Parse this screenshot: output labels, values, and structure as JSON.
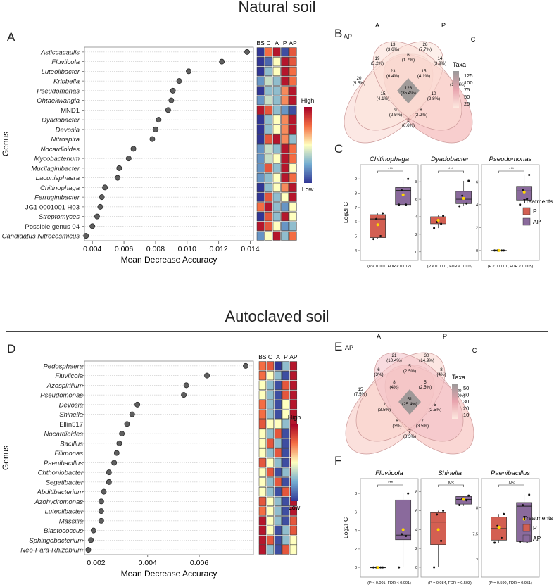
{
  "sections": [
    {
      "title": "Natural soil"
    },
    {
      "title": "Autoclaved soil"
    }
  ],
  "panels": {
    "A": "A",
    "B": "B",
    "C": "C",
    "D": "D",
    "E": "E",
    "F": "F"
  },
  "legend_common": {
    "high": "High",
    "low": "Low",
    "taxa": "Taxa",
    "treatments": "Treatments"
  },
  "chart_data": [
    {
      "id": "A",
      "type": "scatter",
      "title": "",
      "xlabel": "Mean Decrease Accuracy",
      "ylabel": "Genus",
      "xlim": [
        0.0035,
        0.0142
      ],
      "xticks": [
        0.004,
        0.006,
        0.008,
        0.01,
        0.012,
        0.014
      ],
      "xtick_labels": [
        "0.004",
        "0.006",
        "0.008",
        "0.010",
        "0.012",
        "0.014"
      ],
      "heatmap_cols": [
        "BS",
        "C",
        "A",
        "P",
        "AP"
      ],
      "genera": [
        {
          "name": "Asticcacaulis",
          "italic": true,
          "value": 0.0138,
          "heat": [
            0,
            0.75,
            0.95,
            0.05,
            0.8
          ]
        },
        {
          "name": "Fluviicola",
          "italic": true,
          "value": 0.0122,
          "heat": [
            0,
            0.1,
            0.5,
            0.95,
            0.8
          ]
        },
        {
          "name": "Luteolibacter",
          "italic": true,
          "value": 0.0101,
          "heat": [
            0,
            0.3,
            0.5,
            0.95,
            0.75
          ]
        },
        {
          "name": "Kribbella",
          "italic": true,
          "value": 0.0095,
          "heat": [
            0.2,
            0.4,
            0.3,
            0.95,
            0.75
          ]
        },
        {
          "name": "Pseudomonas",
          "italic": true,
          "value": 0.0091,
          "heat": [
            0,
            0.3,
            0.3,
            0.7,
            0.95
          ]
        },
        {
          "name": "Ohtaekwangia",
          "italic": true,
          "value": 0.009,
          "heat": [
            0.2,
            0.4,
            0.3,
            0.7,
            0.95
          ]
        },
        {
          "name": "MND1",
          "italic": false,
          "value": 0.0088,
          "heat": [
            0.95,
            0.8,
            0.3,
            0.2,
            0.05
          ]
        },
        {
          "name": "Dyadobacter",
          "italic": true,
          "value": 0.0082,
          "heat": [
            0,
            0.3,
            0.5,
            0.7,
            0.95
          ]
        },
        {
          "name": "Devosia",
          "italic": true,
          "value": 0.008,
          "heat": [
            0,
            0.3,
            0.5,
            0.7,
            0.95
          ]
        },
        {
          "name": "Nitrospira",
          "italic": true,
          "value": 0.0078,
          "heat": [
            0,
            0.8,
            0.95,
            0.7,
            0.3
          ]
        },
        {
          "name": "Nocardioides",
          "italic": true,
          "value": 0.0066,
          "heat": [
            0.2,
            0.4,
            0.3,
            0.95,
            0.75
          ]
        },
        {
          "name": "Mycobacterium",
          "italic": true,
          "value": 0.0063,
          "heat": [
            0.2,
            0.4,
            0.5,
            0.95,
            0.75
          ]
        },
        {
          "name": "Mucilaginibacter",
          "italic": true,
          "value": 0.0057,
          "heat": [
            0.2,
            0.8,
            0.3,
            0.95,
            0.5
          ]
        },
        {
          "name": "Lacunisphaera",
          "italic": true,
          "value": 0.0056,
          "heat": [
            0.2,
            0.3,
            0.5,
            0.95,
            0.75
          ]
        },
        {
          "name": "Chitinophaga",
          "italic": true,
          "value": 0.0048,
          "heat": [
            0,
            0.3,
            0.5,
            0.7,
            0.95
          ]
        },
        {
          "name": "Ferruginibacter",
          "italic": true,
          "value": 0.0046,
          "heat": [
            0,
            0.8,
            0.3,
            0.5,
            0.95
          ]
        },
        {
          "name": "JG1 0001001 H03",
          "italic": false,
          "value": 0.0045,
          "heat": [
            0.75,
            0.95,
            0.3,
            0.2,
            0.5
          ]
        },
        {
          "name": "Streptomyces",
          "italic": true,
          "value": 0.0043,
          "heat": [
            0,
            0.8,
            0.3,
            0.95,
            0.5
          ]
        },
        {
          "name": "Possible genus 04",
          "italic": false,
          "value": 0.004,
          "heat": [
            0.95,
            0.8,
            0.5,
            0.2,
            0.3
          ]
        },
        {
          "name": "Candidatus Nitrocosmicus",
          "italic": true,
          "value": 0.0036,
          "heat": [
            0.2,
            0.5,
            0.95,
            0.3,
            0.75
          ]
        }
      ]
    },
    {
      "id": "B",
      "type": "venn",
      "title": "",
      "legend_title": "Taxa",
      "legend_ticks": [
        "125",
        "100",
        "75",
        "50",
        "25"
      ],
      "sets": [
        "A",
        "P",
        "AP",
        "C"
      ],
      "regions": [
        {
          "count": "13",
          "pct": "(3.6%)"
        },
        {
          "count": "28",
          "pct": "(7.7%)"
        },
        {
          "count": "19",
          "pct": "(5.2%)"
        },
        {
          "count": "6",
          "pct": "(1.7%)"
        },
        {
          "count": "14",
          "pct": "(3.9%)"
        },
        {
          "count": "20",
          "pct": "(5.5%)"
        },
        {
          "count": "23",
          "pct": "(6.4%)"
        },
        {
          "count": "15",
          "pct": "(4.1%)"
        },
        {
          "count": "52",
          "pct": "(14.4%)"
        },
        {
          "count": "128",
          "pct": "(35.4%)"
        },
        {
          "count": "15",
          "pct": "(4.1%)"
        },
        {
          "count": "9",
          "pct": "(2.5%)"
        },
        {
          "count": "8",
          "pct": "(2.2%)"
        },
        {
          "count": "10",
          "pct": "(2.8%)"
        },
        {
          "count": "2",
          "pct": "(0.6%)"
        }
      ]
    },
    {
      "id": "C",
      "type": "box",
      "ylabel": "Log2FC",
      "legend_title": "Treatments",
      "legend_items": [
        "P",
        "AP"
      ],
      "colors": {
        "P": "#d35f52",
        "AP": "#8a6a9c",
        "mean": "#ffd700"
      },
      "subplots": [
        {
          "title": "Chitinophaga",
          "ylim": [
            3.6,
            9.6
          ],
          "yticks": [
            4,
            5,
            6,
            7,
            8,
            9
          ],
          "sig": "***",
          "footnote": "(P < 0.001, FDR < 0.012)",
          "P": {
            "min": 4.8,
            "q1": 4.9,
            "median": 6.2,
            "q3": 6.5,
            "max": 6.6,
            "mean": 5.8,
            "points": [
              4.8,
              5.0,
              6.2,
              6.6
            ]
          },
          "AP": {
            "min": 7.2,
            "q1": 7.2,
            "median": 8.2,
            "q3": 8.4,
            "max": 9.0,
            "mean": 7.9,
            "points": [
              7.2,
              7.2,
              8.2,
              9.0
            ]
          }
        },
        {
          "title": "Dyadobacter",
          "ylim": [
            -0.5,
            9.3
          ],
          "yticks": [
            0,
            2,
            4,
            6,
            8
          ],
          "sig": "***",
          "footnote": "(P < 0.0001, FDR < 0.005)",
          "P": {
            "min": 2.7,
            "q1": 3.2,
            "median": 3.4,
            "q3": 4.0,
            "max": 4.2,
            "mean": 3.6,
            "points": [
              2.7,
              3.2,
              3.4,
              4.1
            ]
          },
          "AP": {
            "min": 5.2,
            "q1": 5.5,
            "median": 6.0,
            "q3": 6.9,
            "max": 8.1,
            "mean": 6.1,
            "points": [
              5.2,
              5.5,
              6.4,
              8.1
            ]
          }
        },
        {
          "title": "Pseudomonas",
          "ylim": [
            -0.5,
            7.0
          ],
          "yticks": [
            0,
            2,
            4,
            6
          ],
          "sig": "***",
          "footnote": "(P < 0.0001, FDR < 0.005)",
          "P": {
            "min": 0,
            "q1": 0,
            "median": 0,
            "q3": 0,
            "max": 0,
            "mean": 0,
            "points": [
              0,
              0,
              0,
              0
            ]
          },
          "AP": {
            "min": 4.0,
            "q1": 4.4,
            "median": 5.2,
            "q3": 5.6,
            "max": 6.6,
            "mean": 5.1,
            "points": [
              4.0,
              4.5,
              5.3,
              6.6
            ]
          }
        }
      ]
    },
    {
      "id": "D",
      "type": "scatter",
      "title": "",
      "xlabel": "Mean Decrease Accuracy",
      "ylabel": "Genus",
      "xlim": [
        0.00155,
        0.0081
      ],
      "xticks": [
        0.002,
        0.004,
        0.006
      ],
      "xtick_labels": [
        "0.002",
        "0.004",
        "0.006"
      ],
      "heatmap_cols": [
        "BS",
        "C",
        "A",
        "P",
        "AP"
      ],
      "genera": [
        {
          "name": "Pedosphaera",
          "italic": true,
          "value": 0.0078,
          "heat": [
            0.75,
            0.8,
            0,
            0.3,
            0.95
          ]
        },
        {
          "name": "Fluviicola",
          "italic": true,
          "value": 0.0063,
          "heat": [
            0.75,
            0.5,
            0.3,
            0.05,
            0.95
          ]
        },
        {
          "name": "Azospirillum",
          "italic": true,
          "value": 0.0055,
          "heat": [
            0.5,
            0.3,
            0.05,
            0.8,
            0.95
          ]
        },
        {
          "name": "Pseudomonas",
          "italic": true,
          "value": 0.0054,
          "heat": [
            0.5,
            0.3,
            0.05,
            0.8,
            0.95
          ]
        },
        {
          "name": "Devosia",
          "italic": true,
          "value": 0.0036,
          "heat": [
            0.75,
            0.3,
            0.05,
            0.5,
            0.95
          ]
        },
        {
          "name": "Shinella",
          "italic": true,
          "value": 0.0034,
          "heat": [
            0.75,
            0.3,
            0.05,
            0.5,
            0.95
          ]
        },
        {
          "name": "Ellin517",
          "italic": false,
          "value": 0.0032,
          "heat": [
            0.8,
            0.5,
            0.5,
            0.3,
            0.95
          ]
        },
        {
          "name": "Nocardioides",
          "italic": true,
          "value": 0.003,
          "heat": [
            0.5,
            0.3,
            0.8,
            0.05,
            0.95
          ]
        },
        {
          "name": "Bacillus",
          "italic": true,
          "value": 0.0029,
          "heat": [
            0.5,
            0.8,
            0.3,
            0.05,
            0.95
          ]
        },
        {
          "name": "Filimonas",
          "italic": true,
          "value": 0.0028,
          "heat": [
            0.5,
            0.3,
            0.8,
            0.05,
            0.95
          ]
        },
        {
          "name": "Paenibacillus",
          "italic": true,
          "value": 0.0027,
          "heat": [
            0.8,
            0.5,
            0.3,
            0.05,
            0.95
          ]
        },
        {
          "name": "Chthoniobacter",
          "italic": true,
          "value": 0.0025,
          "heat": [
            0.5,
            0.8,
            0.05,
            0.3,
            0.95
          ]
        },
        {
          "name": "Segetibacter",
          "italic": true,
          "value": 0.0025,
          "heat": [
            0.5,
            0.3,
            0.8,
            0.05,
            0.95
          ]
        },
        {
          "name": "Abditibacterium",
          "italic": true,
          "value": 0.0023,
          "heat": [
            0.5,
            0.3,
            0.05,
            0.8,
            0.95
          ]
        },
        {
          "name": "Azohydromonas",
          "italic": true,
          "value": 0.0022,
          "heat": [
            0.8,
            0.5,
            0.3,
            0.05,
            0.95
          ]
        },
        {
          "name": "Luteolibacter",
          "italic": true,
          "value": 0.0022,
          "heat": [
            0.75,
            0.5,
            0.3,
            0.05,
            0.95
          ]
        },
        {
          "name": "Massilia",
          "italic": true,
          "value": 0.0022,
          "heat": [
            0.95,
            0.5,
            0.3,
            0.05,
            0.8
          ]
        },
        {
          "name": "Blastococcus",
          "italic": true,
          "value": 0.0019,
          "heat": [
            0.95,
            0.5,
            0.05,
            0.3,
            0.8
          ]
        },
        {
          "name": "Sphingobacterium",
          "italic": true,
          "value": 0.0018,
          "heat": [
            0.95,
            0.8,
            0.05,
            0.3,
            0.5
          ]
        },
        {
          "name": "Neo-Para-Rhizobium",
          "italic": true,
          "value": 0.0017,
          "heat": [
            0.95,
            0.3,
            0.05,
            0.8,
            0.5
          ]
        }
      ]
    },
    {
      "id": "E",
      "type": "venn",
      "title": "",
      "legend_title": "Taxa",
      "legend_ticks": [
        "50",
        "40",
        "30",
        "20",
        "10"
      ],
      "sets": [
        "A",
        "P",
        "AP",
        "C"
      ],
      "regions": [
        {
          "count": "21",
          "pct": "(10.4%)"
        },
        {
          "count": "30",
          "pct": "(14.9%)"
        },
        {
          "count": "6",
          "pct": "(3%)"
        },
        {
          "count": "5",
          "pct": "(2.5%)"
        },
        {
          "count": "8",
          "pct": "(4%)"
        },
        {
          "count": "15",
          "pct": "(7.5%)"
        },
        {
          "count": "8",
          "pct": "(4%)"
        },
        {
          "count": "5",
          "pct": "(2.5%)"
        },
        {
          "count": "20",
          "pct": "(10%)"
        },
        {
          "count": "51",
          "pct": "(25.4%)"
        },
        {
          "count": "7",
          "pct": "(3.5%)"
        },
        {
          "count": "6",
          "pct": "(3%)"
        },
        {
          "count": "7",
          "pct": "(3.5%)"
        },
        {
          "count": "5",
          "pct": "(2.5%)"
        },
        {
          "count": "7",
          "pct": "(3.5%)"
        }
      ]
    },
    {
      "id": "F",
      "type": "box",
      "ylabel": "Log2FC",
      "legend_title": "Treatments",
      "legend_items": [
        "P",
        "AP"
      ],
      "colors": {
        "P": "#d35f52",
        "AP": "#8a6a9c",
        "mean": "#ffd700"
      },
      "subplots": [
        {
          "title": "Fluviicola",
          "ylim": [
            -0.6,
            9.0
          ],
          "yticks": [
            0,
            2,
            4,
            6,
            8
          ],
          "sig": "***",
          "footnote": "(P < 0.001, FDR < 0.001)",
          "P": {
            "min": 0,
            "q1": 0,
            "median": 0,
            "q3": 0,
            "max": 0,
            "mean": 0,
            "points": [
              0,
              0,
              0,
              0
            ]
          },
          "AP": {
            "min": 0,
            "q1": 3.0,
            "median": 3.5,
            "q3": 7.3,
            "max": 8.0,
            "mean": 4.1,
            "points": [
              0,
              3.4,
              3.6,
              8.0
            ]
          }
        },
        {
          "title": "Shinella",
          "ylim": [
            -0.6,
            8.8
          ],
          "yticks": [
            0,
            2,
            4,
            6,
            8
          ],
          "sig": "NS",
          "footnote": "(P = 0.084, FDR = 0.503)",
          "P": {
            "min": 0,
            "q1": 2.4,
            "median": 4.8,
            "q3": 5.8,
            "max": 6.0,
            "mean": 4.0,
            "points": [
              0,
              2.8,
              5.6,
              6.0
            ]
          },
          "AP": {
            "min": 6.5,
            "q1": 6.7,
            "median": 7.2,
            "q3": 7.5,
            "max": 7.6,
            "mean": 7.2,
            "points": [
              6.6,
              7.1,
              7.3,
              7.6
            ]
          }
        },
        {
          "title": "Paenibacillus",
          "ylim": [
            6.75,
            8.45
          ],
          "yticks": [
            7.0,
            7.5,
            8.0
          ],
          "sig": "NS",
          "footnote": "(P = 0.590, FDR = 0.951)",
          "P": {
            "min": 7.33,
            "q1": 7.38,
            "median": 7.6,
            "q3": 7.82,
            "max": 7.88,
            "mean": 7.62,
            "points": [
              7.33,
              7.42,
              7.65,
              7.88
            ]
          },
          "AP": {
            "min": 7.35,
            "q1": 7.35,
            "median": 8.03,
            "q3": 8.1,
            "max": 8.25,
            "mean": 7.78,
            "points": [
              7.35,
              7.35,
              8.05,
              8.25
            ]
          }
        }
      ]
    }
  ]
}
